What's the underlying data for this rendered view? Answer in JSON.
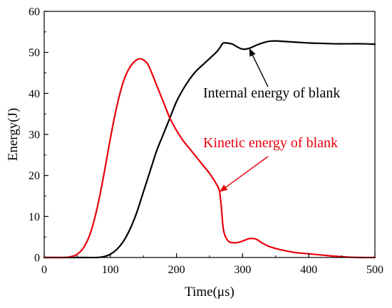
{
  "chart_data": {
    "type": "line",
    "xlabel": "Time(μs)",
    "ylabel": "Energy(J)",
    "xlim": [
      0,
      500
    ],
    "ylim": [
      0,
      60
    ],
    "xticks": [
      0,
      100,
      200,
      300,
      400,
      500
    ],
    "yticks": [
      0,
      10,
      20,
      30,
      40,
      50,
      60
    ],
    "grid": false,
    "series": [
      {
        "color": "#000000",
        "x": [
          0,
          60,
          80,
          90,
          100,
          110,
          120,
          130,
          140,
          150,
          160,
          170,
          180,
          190,
          200,
          210,
          220,
          230,
          240,
          250,
          260,
          265,
          270,
          275,
          285,
          290,
          300,
          310,
          320,
          330,
          340,
          350,
          360,
          370,
          380,
          400,
          420,
          440,
          460,
          480,
          500
        ],
        "values": [
          0,
          0,
          0,
          0.2,
          0.8,
          2,
          4,
          7,
          11,
          16,
          21,
          26,
          30,
          34,
          38,
          41,
          43.5,
          45.5,
          47,
          48.5,
          50,
          51,
          52.2,
          52.3,
          52,
          51.5,
          50.8,
          51,
          51.7,
          52.3,
          52.7,
          52.8,
          52.7,
          52.6,
          52.5,
          52.3,
          52.2,
          52.1,
          52.1,
          52.1,
          52
        ]
      },
      {
        "color": "#e8000b",
        "x": [
          0,
          30,
          40,
          50,
          60,
          70,
          80,
          90,
          100,
          110,
          120,
          130,
          140,
          147,
          155,
          160,
          170,
          180,
          190,
          200,
          210,
          220,
          230,
          240,
          250,
          260,
          265,
          268,
          270,
          272,
          275,
          280,
          290,
          300,
          310,
          320,
          330,
          340,
          350,
          360,
          380,
          400,
          420,
          440,
          460,
          480,
          500
        ],
        "values": [
          0,
          0,
          0.2,
          0.8,
          2.5,
          6,
          12,
          20,
          29,
          37,
          43,
          46.5,
          48.2,
          48.4,
          47.5,
          46,
          42,
          38,
          34,
          31,
          28.5,
          26.5,
          24.5,
          22.5,
          20.5,
          18,
          16.2,
          12,
          8,
          6,
          4.8,
          3.8,
          3.6,
          4,
          4.6,
          4.5,
          3.5,
          2.7,
          2.2,
          1.8,
          1.2,
          0.9,
          0.6,
          0.3,
          0.1,
          0,
          0
        ]
      }
    ],
    "annotations": [
      {
        "text": "Internal energy of blank",
        "color": "#000000",
        "target_x": 310,
        "target_y": 51
      },
      {
        "text": "Kinetic energy of blank",
        "color": "#e8000b",
        "target_x": 265,
        "target_y": 16
      }
    ]
  }
}
